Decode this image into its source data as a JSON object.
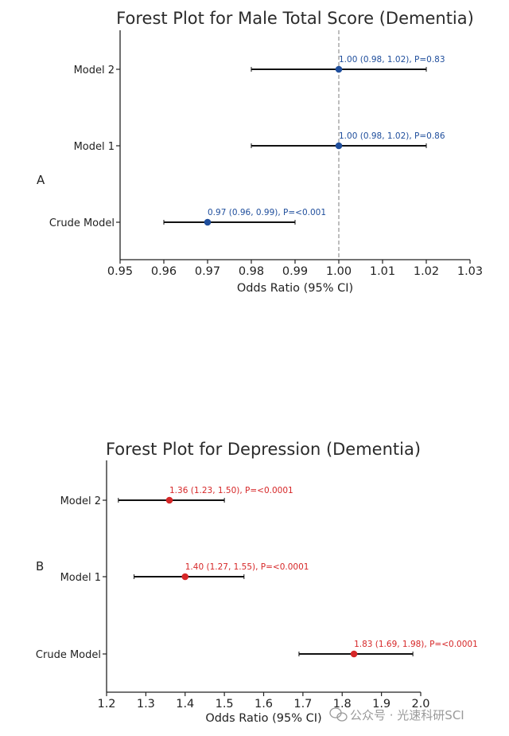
{
  "chart_data": [
    {
      "type": "forest",
      "panel": "A",
      "title": "Forest Plot for Male Total Score (Dementia)",
      "xlabel": "Odds Ratio (95% CI)",
      "xlim": [
        0.95,
        1.03
      ],
      "xticks": [
        "0.95",
        "0.96",
        "0.97",
        "0.98",
        "0.99",
        "1.00",
        "1.01",
        "1.02",
        "1.03"
      ],
      "reference_line": 1.0,
      "color": "#1f4e9c",
      "rows": [
        {
          "label": "Model 2",
          "or": 1.0,
          "lower": 0.98,
          "upper": 1.02,
          "text": "1.00 (0.98, 1.02), P=0.83"
        },
        {
          "label": "Model 1",
          "or": 1.0,
          "lower": 0.98,
          "upper": 1.02,
          "text": "1.00 (0.98, 1.02), P=0.86"
        },
        {
          "label": "Crude Model",
          "or": 0.97,
          "lower": 0.96,
          "upper": 0.99,
          "text": "0.97 (0.96, 0.99), P=<0.001"
        }
      ]
    },
    {
      "type": "forest",
      "panel": "B",
      "title": "Forest Plot for Depression (Dementia)",
      "xlabel": "Odds Ratio (95% CI)",
      "xlim": [
        1.2,
        2.0
      ],
      "xticks": [
        "1.2",
        "1.3",
        "1.4",
        "1.5",
        "1.6",
        "1.7",
        "1.8",
        "1.9",
        "2.0"
      ],
      "reference_line": null,
      "color": "#d62728",
      "rows": [
        {
          "label": "Model 2",
          "or": 1.36,
          "lower": 1.23,
          "upper": 1.5,
          "text": "1.36 (1.23, 1.50), P=<0.0001"
        },
        {
          "label": "Model 1",
          "or": 1.4,
          "lower": 1.27,
          "upper": 1.55,
          "text": "1.40 (1.27, 1.55), P=<0.0001"
        },
        {
          "label": "Crude Model",
          "or": 1.83,
          "lower": 1.69,
          "upper": 1.98,
          "text": "1.83 (1.69, 1.98), P=<0.0001"
        }
      ]
    }
  ],
  "watermark": "公众号 · 光速科研SCI"
}
